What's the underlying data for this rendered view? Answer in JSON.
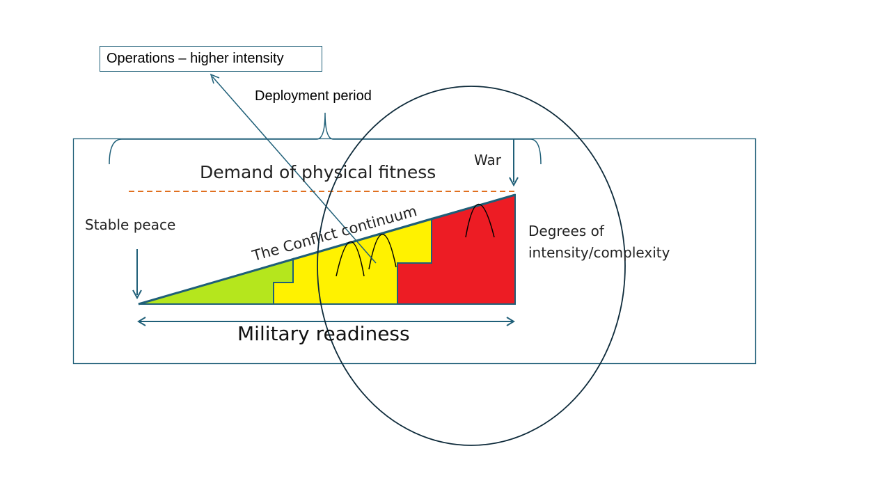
{
  "callout": {
    "text": "Operations – higher intensity"
  },
  "labels": {
    "deployment_period": "Deployment period",
    "demand": "Demand of physical fitness",
    "war": "War",
    "stable_peace": "Stable peace",
    "degrees_line1": "Degrees of",
    "degrees_line2": "intensity/complexity",
    "continuum": "The Conflict continuum",
    "military_readiness": "Military readiness"
  },
  "colors": {
    "frame": "#1f5f78",
    "dashed_line": "#e07020",
    "zone_green": "#b5e61d",
    "zone_yellow": "#fff200",
    "zone_red": "#ed1c24",
    "ellipse": "#0d2a3a"
  }
}
